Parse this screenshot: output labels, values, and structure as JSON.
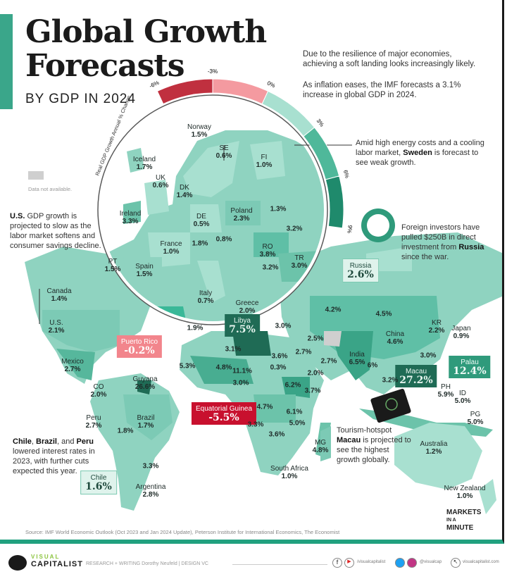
{
  "header": {
    "title_line1": "Global Growth",
    "title_line2": "Forecasts",
    "subtitle": "BY GDP IN 2024"
  },
  "intro": [
    "Due to the resilience of major economies, achieving a soft landing looks increasingly likely.",
    "As inflation eases, the IMF forecasts a 3.1% increase in global GDP in 2024."
  ],
  "legend": {
    "title": "Real GDP Growth Annual % Change",
    "ticks": [
      "-6%",
      "-3%",
      "0%",
      "3%",
      "6%",
      "9%"
    ],
    "colors": [
      "#c0303f",
      "#f49aa0",
      "#a8e0d0",
      "#4fb89a",
      "#1f8a6c"
    ]
  },
  "no_data": {
    "label": "Data not available.",
    "color": "#cfcfcf"
  },
  "notes": {
    "sweden": {
      "pre": "Amid high energy costs and a cooling labor market, ",
      "bold": "Sweden",
      "post": " is forecast to see weak growth."
    },
    "russia": {
      "pre": "Foreign investors have pulled $250B in direct investment from ",
      "bold": "Russia",
      "post": " since the war."
    },
    "us": {
      "bold": "U.S.",
      "post": " GDP growth is projected to slow as the labor market softens and consumer savings decline."
    },
    "latam": {
      "bold1": "Chile",
      "s1": ", ",
      "bold2": "Brazil",
      "s2": ", and ",
      "bold3": "Peru",
      "post": " lowered interest rates in 2023, with further cuts expected this year."
    },
    "macau": {
      "pre": "Tourism-hotspot ",
      "bold": "Macau",
      "post": " is projected to see the highest growth globally."
    }
  },
  "labels": [
    {
      "name": "Norway",
      "value": "1.5%"
    },
    {
      "name": "Iceland",
      "value": "1.7%"
    },
    {
      "name": "SE",
      "value": "0.6%"
    },
    {
      "name": "FI",
      "value": "1.0%"
    },
    {
      "name": "UK",
      "value": "0.6%"
    },
    {
      "name": "DK",
      "value": "1.4%"
    },
    {
      "name": "Ireland",
      "value": "3.3%"
    },
    {
      "name": "DE",
      "value": "0.5%"
    },
    {
      "name": "Poland",
      "value": "2.3%"
    },
    {
      "name": "",
      "value": "1.3%"
    },
    {
      "name": "",
      "value": "3.2%"
    },
    {
      "name": "France",
      "value": "1.0%"
    },
    {
      "name": "",
      "value": "1.8%"
    },
    {
      "name": "",
      "value": "0.8%"
    },
    {
      "name": "RO",
      "value": "3.8%"
    },
    {
      "name": "PT",
      "value": "1.5%"
    },
    {
      "name": "Spain",
      "value": "1.5%"
    },
    {
      "name": "TR",
      "value": "3.0%"
    },
    {
      "name": "Italy",
      "value": "0.7%"
    },
    {
      "name": "",
      "value": "3.2%"
    },
    {
      "name": "Greece",
      "value": "2.0%"
    },
    {
      "name": "Russia",
      "value": "2.6%"
    },
    {
      "name": "Canada",
      "value": "1.4%"
    },
    {
      "name": "U.S.",
      "value": "2.1%"
    },
    {
      "name": "",
      "value": "1.9%"
    },
    {
      "name": "Libya",
      "value": "7.5%"
    },
    {
      "name": "",
      "value": "3.0%"
    },
    {
      "name": "",
      "value": "4.2%"
    },
    {
      "name": "",
      "value": "4.5%"
    },
    {
      "name": "KR",
      "value": "2.2%"
    },
    {
      "name": "Japan",
      "value": "0.9%"
    },
    {
      "name": "China",
      "value": "4.6%"
    },
    {
      "name": "",
      "value": "2.5%"
    },
    {
      "name": "",
      "value": "3.1%"
    },
    {
      "name": "",
      "value": "3.6%"
    },
    {
      "name": "",
      "value": "2.7%"
    },
    {
      "name": "",
      "value": "2.7%"
    },
    {
      "name": "",
      "value": "0.3%"
    },
    {
      "name": "",
      "value": "2.0%"
    },
    {
      "name": "",
      "value": "5.3%"
    },
    {
      "name": "",
      "value": "4.8%"
    },
    {
      "name": "",
      "value": "11.1%"
    },
    {
      "name": "",
      "value": "3.0%"
    },
    {
      "name": "Mexico",
      "value": "2.7%"
    },
    {
      "name": "Puerto Rico",
      "value": "-0.2%"
    },
    {
      "name": "Guyana",
      "value": "26.6%"
    },
    {
      "name": "India",
      "value": "6.5%"
    },
    {
      "name": "",
      "value": "6%"
    },
    {
      "name": "",
      "value": "3.0%"
    },
    {
      "name": "Macau",
      "value": "27.2%"
    },
    {
      "name": "Palau",
      "value": "12.4%"
    },
    {
      "name": "",
      "value": "3.2%"
    },
    {
      "name": "PH",
      "value": "5.9%"
    },
    {
      "name": "ID",
      "value": "5.0%"
    },
    {
      "name": "PG",
      "value": "5.0%"
    },
    {
      "name": "",
      "value": "6.2%"
    },
    {
      "name": "",
      "value": "3.7%"
    },
    {
      "name": "CO",
      "value": "2.0%"
    },
    {
      "name": "Equatorial Guinea",
      "value": "-5.5%"
    },
    {
      "name": "",
      "value": "4.7%"
    },
    {
      "name": "",
      "value": "6.1%"
    },
    {
      "name": "Peru",
      "value": "2.7%"
    },
    {
      "name": "Brazil",
      "value": "1.7%"
    },
    {
      "name": "",
      "value": "5.0%"
    },
    {
      "name": "",
      "value": "3.3%"
    },
    {
      "name": "",
      "value": "1.8%"
    },
    {
      "name": "",
      "value": "3.6%"
    },
    {
      "name": "MG",
      "value": "4.8%"
    },
    {
      "name": "Australia",
      "value": "1.2%"
    },
    {
      "name": "",
      "value": "3.3%"
    },
    {
      "name": "Chile",
      "value": "1.6%"
    },
    {
      "name": "Argentina",
      "value": "2.8%"
    },
    {
      "name": "South Africa",
      "value": "1.0%"
    },
    {
      "name": "New Zealand",
      "value": "1.0%"
    }
  ],
  "source": "Source: IMF World Economic Outlook (Oct 2023 and Jan 2024 Update), Peterson Institute for International Economics, The Economist",
  "badge": {
    "line1": "MARKETS",
    "line2": "IN A",
    "line3": "MINUTE"
  },
  "footer": {
    "brand_top": "VISUAL",
    "brand_bottom": "CAPITALIST",
    "credits": "RESEARCH + WRITING Dorothy Neufeld  |  DESIGN VC",
    "handle1": "/visualcapitalist",
    "handle2": "@visualcap",
    "site": "visualcapitalist.com"
  }
}
